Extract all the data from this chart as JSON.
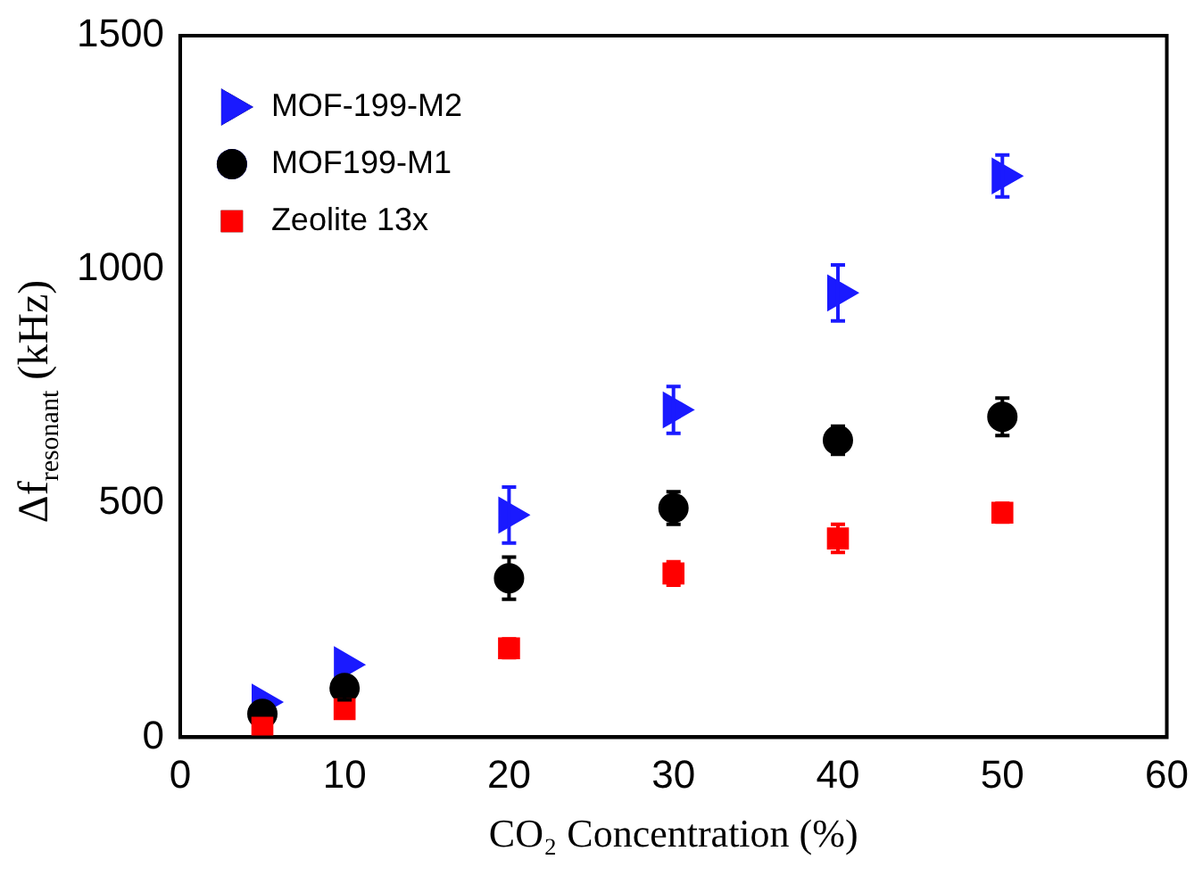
{
  "chart_data": {
    "type": "scatter",
    "xlabel": "CO₂ Concentration (%)",
    "ylabel": "Δf$_{resonant}$ (kHz)",
    "x": [
      5,
      10,
      20,
      30,
      40,
      50
    ],
    "series": [
      {
        "name": "MOF-199-M2",
        "color": "#1a1aff",
        "marker": "triangle",
        "values": [
          75,
          155,
          475,
          700,
          950,
          1200
        ],
        "errors": [
          null,
          null,
          60,
          50,
          60,
          45
        ]
      },
      {
        "name": "MOF199-M1",
        "color": "#000000",
        "marker": "circle",
        "values": [
          50,
          105,
          340,
          490,
          635,
          685
        ],
        "errors": [
          null,
          25,
          45,
          35,
          30,
          40
        ]
      },
      {
        "name": "Zeolite 13x",
        "color": "#ff0000",
        "marker": "square",
        "values": [
          20,
          60,
          190,
          350,
          425,
          480
        ],
        "errors": [
          null,
          null,
          20,
          25,
          30,
          20
        ]
      }
    ],
    "xlim": [
      0,
      60
    ],
    "xticks": [
      0,
      10,
      20,
      30,
      40,
      50,
      60
    ],
    "ylim": [
      0,
      1500
    ],
    "yticks": [
      0,
      500,
      1000,
      1500
    ],
    "grid": false,
    "legend": "top left"
  }
}
